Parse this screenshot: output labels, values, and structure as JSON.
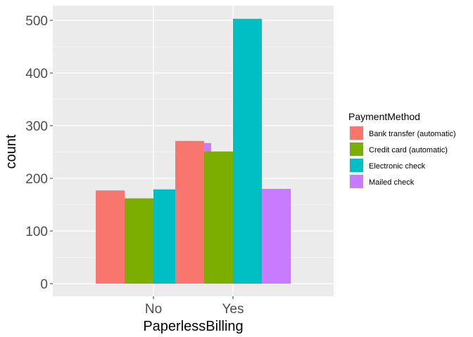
{
  "chart_data": {
    "type": "bar",
    "xlabel": "PaperlessBilling",
    "ylabel": "count",
    "categories": [
      "No",
      "Yes"
    ],
    "ylim": [
      0,
      525
    ],
    "yticks": [
      0,
      100,
      200,
      300,
      400,
      500
    ],
    "grid": true,
    "legend": {
      "title": "PaymentMethod",
      "position": "right"
    },
    "series": [
      {
        "name": "Bank transfer (automatic)",
        "color": "#F8766D",
        "values": [
          177,
          271
        ]
      },
      {
        "name": "Credit card (automatic)",
        "color": "#7CAE00",
        "values": [
          162,
          251
        ]
      },
      {
        "name": "Electronic check",
        "color": "#00BFC4",
        "values": [
          179,
          503
        ]
      },
      {
        "name": "Mailed check",
        "color": "#C77CFF",
        "values": [
          267,
          180
        ]
      }
    ]
  }
}
